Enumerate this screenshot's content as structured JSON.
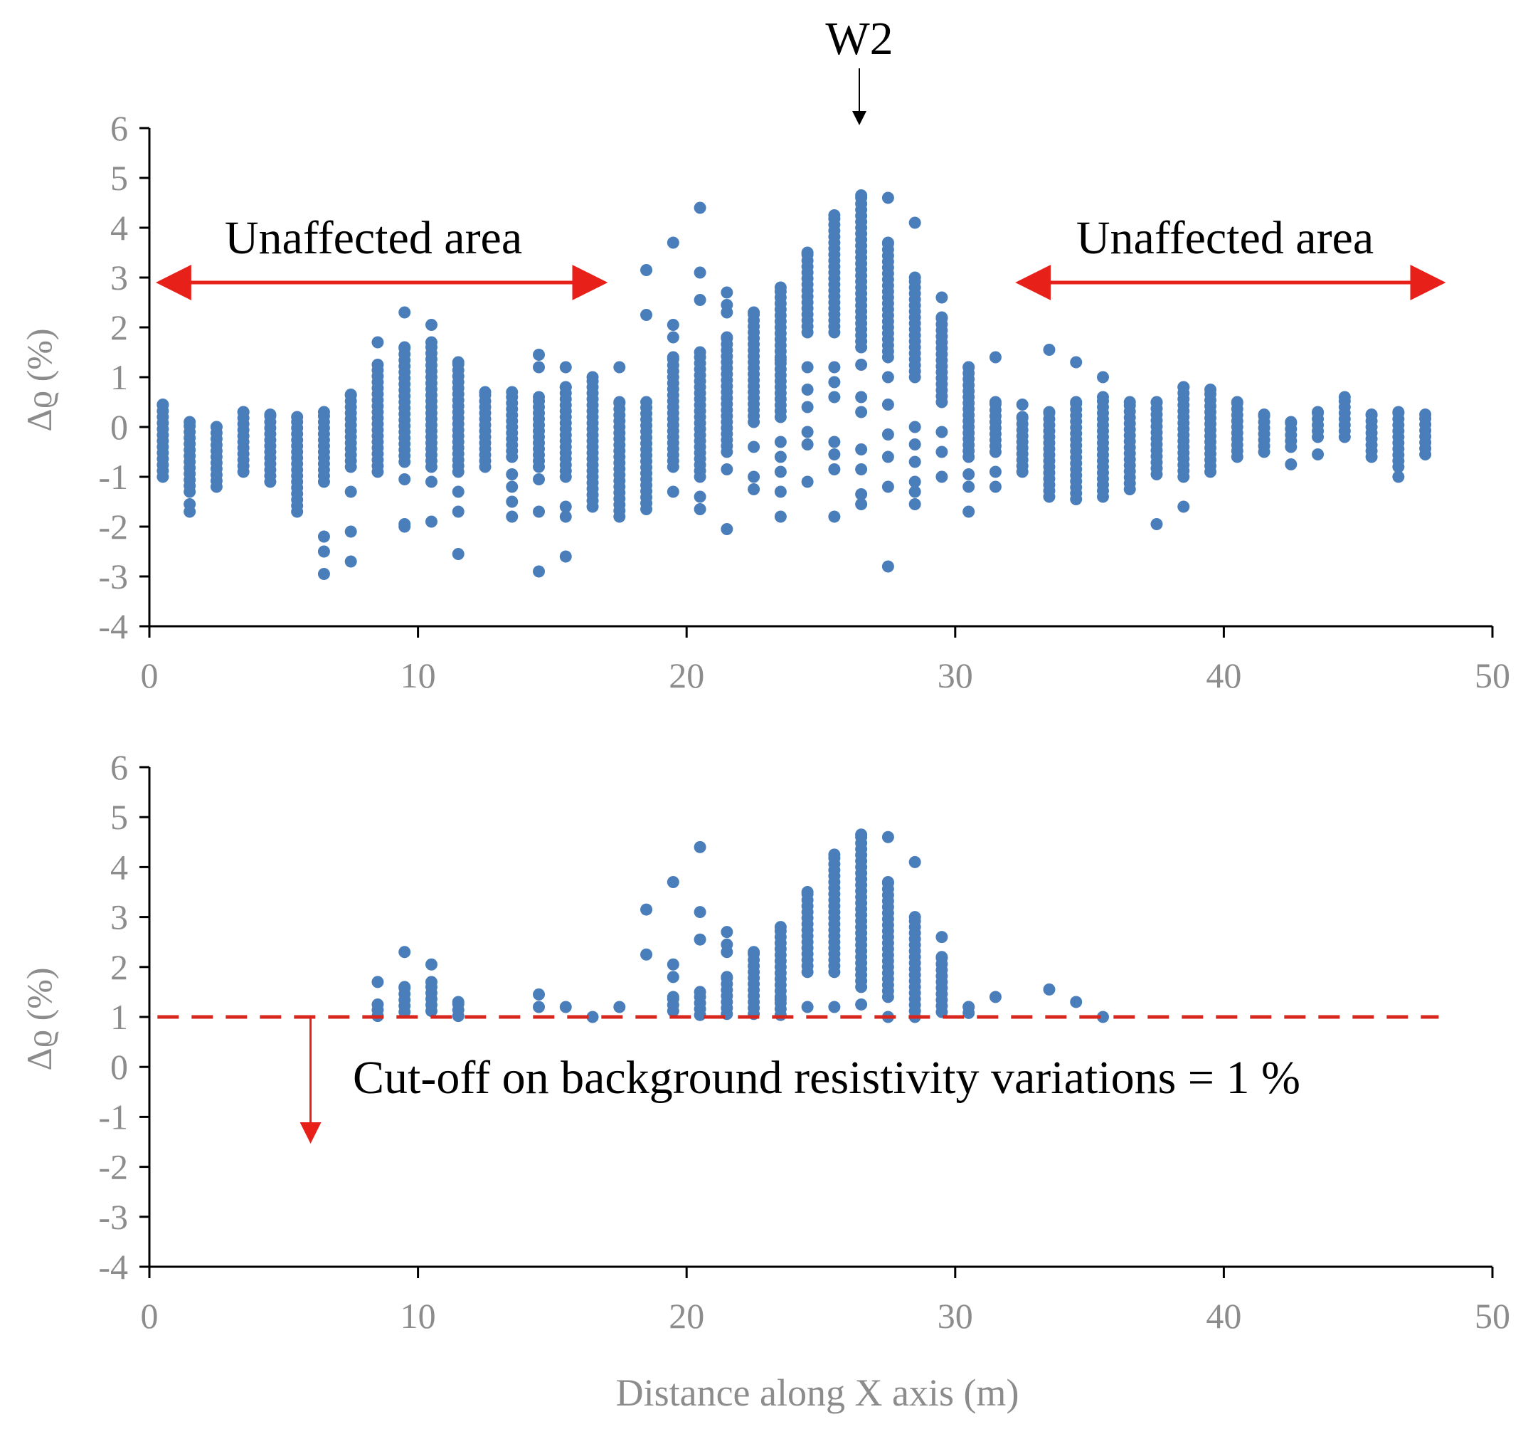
{
  "figure": {
    "marker_label": "W2",
    "point_color": "#4a7ebb",
    "arrow_color": "#e8201a",
    "cutoff_color": "#d9261c"
  },
  "chart_data": [
    {
      "type": "scatter",
      "panel": "top",
      "title": "",
      "xlabel": "",
      "ylabel": "Δϱ (%)",
      "xlim": [
        0,
        50
      ],
      "ylim": [
        -4,
        6
      ],
      "xticks": [
        "0",
        "10",
        "20",
        "30",
        "40",
        "50"
      ],
      "yticks": [
        "6",
        "5",
        "4",
        "3",
        "2",
        "1",
        "0",
        "-1",
        "-2",
        "-3",
        "-4"
      ],
      "annotations": {
        "left_label": "Unaffected area",
        "right_label": "Unaffected area",
        "left_arrow_x": [
          0.5,
          16.8
        ],
        "right_arrow_x": [
          32.5,
          48
        ],
        "arrow_y": 2.9
      },
      "columns": [
        {
          "x": 0.5,
          "min": -1.0,
          "max": 0.45,
          "extras": []
        },
        {
          "x": 1.5,
          "min": -1.3,
          "max": 0.1,
          "extras": [
            -1.55,
            -1.7
          ]
        },
        {
          "x": 2.5,
          "min": -1.2,
          "max": 0.0,
          "extras": []
        },
        {
          "x": 3.5,
          "min": -0.9,
          "max": 0.3,
          "extras": []
        },
        {
          "x": 4.5,
          "min": -1.1,
          "max": 0.25,
          "extras": []
        },
        {
          "x": 5.5,
          "min": -1.7,
          "max": 0.2,
          "extras": []
        },
        {
          "x": 6.5,
          "min": -1.1,
          "max": 0.3,
          "extras": [
            -2.2,
            -2.5,
            -2.95
          ]
        },
        {
          "x": 7.5,
          "min": -0.8,
          "max": 0.65,
          "extras": [
            -1.3,
            -2.1,
            -2.7
          ]
        },
        {
          "x": 8.5,
          "min": -0.9,
          "max": 1.25,
          "extras": [
            1.7
          ]
        },
        {
          "x": 9.5,
          "min": -0.7,
          "max": 1.6,
          "extras": [
            2.3,
            -1.05,
            -1.95,
            -2.0
          ]
        },
        {
          "x": 10.5,
          "min": -0.8,
          "max": 1.7,
          "extras": [
            2.05,
            -1.1,
            -1.9
          ]
        },
        {
          "x": 11.5,
          "min": -0.9,
          "max": 1.3,
          "extras": [
            -1.3,
            -1.7,
            -2.55
          ]
        },
        {
          "x": 12.5,
          "min": -0.8,
          "max": 0.7,
          "extras": []
        },
        {
          "x": 13.5,
          "min": -0.6,
          "max": 0.7,
          "extras": [
            -0.95,
            -1.2,
            -1.5,
            -1.8
          ]
        },
        {
          "x": 14.5,
          "min": -0.8,
          "max": 0.6,
          "extras": [
            1.45,
            1.2,
            -1.05,
            -1.7,
            -2.9
          ]
        },
        {
          "x": 15.5,
          "min": -1.0,
          "max": 0.8,
          "extras": [
            1.2,
            -1.6,
            -1.8,
            -2.6
          ]
        },
        {
          "x": 16.5,
          "min": -1.6,
          "max": 1.0,
          "extras": []
        },
        {
          "x": 17.5,
          "min": -1.8,
          "max": 0.5,
          "extras": [
            1.2
          ]
        },
        {
          "x": 18.5,
          "min": -1.65,
          "max": 0.5,
          "extras": [
            3.15,
            2.25
          ]
        },
        {
          "x": 19.5,
          "min": -0.8,
          "max": 1.4,
          "extras": [
            3.7,
            2.05,
            1.8,
            -1.3
          ]
        },
        {
          "x": 20.5,
          "min": -1.0,
          "max": 1.5,
          "extras": [
            4.4,
            3.1,
            2.55,
            -1.4,
            -1.65
          ]
        },
        {
          "x": 21.5,
          "min": -0.5,
          "max": 1.8,
          "extras": [
            2.7,
            2.45,
            2.3,
            -0.85,
            -2.05
          ]
        },
        {
          "x": 22.5,
          "min": 0.1,
          "max": 2.3,
          "extras": [
            -0.4,
            -1.0,
            -1.25
          ]
        },
        {
          "x": 23.5,
          "min": 0.2,
          "max": 2.8,
          "extras": [
            1.35,
            -0.3,
            -0.6,
            -0.9,
            -1.3,
            -1.8
          ]
        },
        {
          "x": 24.5,
          "min": 1.9,
          "max": 3.5,
          "extras": [
            1.2,
            0.75,
            0.4,
            -0.1,
            -0.35,
            -1.1
          ]
        },
        {
          "x": 25.5,
          "min": 1.9,
          "max": 4.25,
          "extras": [
            1.2,
            0.9,
            0.6,
            -0.3,
            -0.55,
            -0.85,
            -1.8
          ]
        },
        {
          "x": 26.5,
          "min": 1.6,
          "max": 4.65,
          "extras": [
            1.25,
            0.6,
            0.3,
            -0.45,
            -0.85,
            -1.35,
            -1.55
          ]
        },
        {
          "x": 27.5,
          "min": 1.4,
          "max": 3.7,
          "extras": [
            4.6,
            1.0,
            0.45,
            -0.15,
            -0.6,
            -1.2,
            -2.8
          ]
        },
        {
          "x": 28.5,
          "min": 1.0,
          "max": 3.0,
          "extras": [
            4.1,
            0.0,
            -0.35,
            -0.7,
            -1.1,
            -1.3,
            -1.55
          ]
        },
        {
          "x": 29.5,
          "min": 0.5,
          "max": 2.2,
          "extras": [
            2.6,
            -0.1,
            -0.5,
            -1.0
          ]
        },
        {
          "x": 30.5,
          "min": -0.6,
          "max": 1.2,
          "extras": [
            -0.95,
            -1.2,
            -1.7
          ]
        },
        {
          "x": 31.5,
          "min": -0.5,
          "max": 0.5,
          "extras": [
            1.4,
            -0.9,
            -1.2
          ]
        },
        {
          "x": 32.5,
          "min": -0.9,
          "max": 0.2,
          "extras": [
            0.45
          ]
        },
        {
          "x": 33.5,
          "min": -1.4,
          "max": 0.3,
          "extras": [
            1.55
          ]
        },
        {
          "x": 34.5,
          "min": -1.45,
          "max": 0.5,
          "extras": [
            1.3
          ]
        },
        {
          "x": 35.5,
          "min": -1.4,
          "max": 0.6,
          "extras": [
            1.0
          ]
        },
        {
          "x": 36.5,
          "min": -1.25,
          "max": 0.5,
          "extras": []
        },
        {
          "x": 37.5,
          "min": -0.95,
          "max": 0.5,
          "extras": [
            -1.95
          ]
        },
        {
          "x": 38.5,
          "min": -1.0,
          "max": 0.8,
          "extras": [
            -1.6
          ]
        },
        {
          "x": 39.5,
          "min": -0.9,
          "max": 0.75,
          "extras": []
        },
        {
          "x": 40.5,
          "min": -0.6,
          "max": 0.5,
          "extras": []
        },
        {
          "x": 41.5,
          "min": -0.5,
          "max": 0.25,
          "extras": []
        },
        {
          "x": 42.5,
          "min": -0.4,
          "max": 0.1,
          "extras": [
            -0.75
          ]
        },
        {
          "x": 43.5,
          "min": -0.2,
          "max": 0.3,
          "extras": [
            -0.55
          ]
        },
        {
          "x": 44.5,
          "min": -0.2,
          "max": 0.6,
          "extras": []
        },
        {
          "x": 45.5,
          "min": -0.6,
          "max": 0.25,
          "extras": []
        },
        {
          "x": 46.5,
          "min": -0.8,
          "max": 0.3,
          "extras": [
            -1.0
          ]
        },
        {
          "x": 47.5,
          "min": -0.55,
          "max": 0.25,
          "extras": []
        }
      ]
    },
    {
      "type": "scatter",
      "panel": "bottom",
      "title": "",
      "xlabel": "Distance along X axis (m)",
      "ylabel": "Δϱ (%)",
      "xlim": [
        0,
        50
      ],
      "ylim": [
        -4,
        6
      ],
      "xticks": [
        "0",
        "10",
        "20",
        "30",
        "40",
        "50"
      ],
      "yticks": [
        "6",
        "5",
        "4",
        "3",
        "2",
        "1",
        "0",
        "-1",
        "-2",
        "-3",
        "-4"
      ],
      "cutoff": {
        "value": 1,
        "label": "Cut-off on background resistivity variations = 1 %",
        "arrow_x": 6,
        "arrow_to_y": -1.45
      },
      "threshold": 1.0
    }
  ]
}
